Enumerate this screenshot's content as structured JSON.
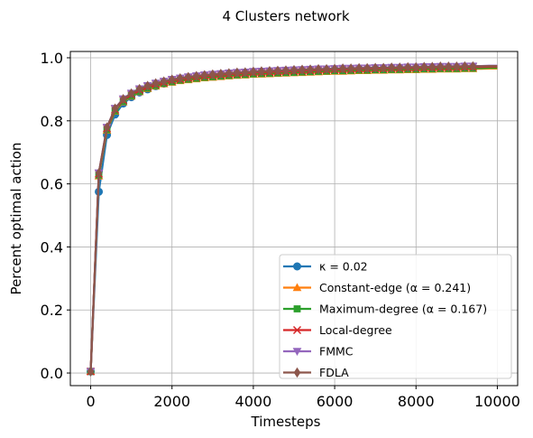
{
  "chart_data": {
    "type": "line",
    "title": "4 Clusters network",
    "xlabel": "Timesteps",
    "ylabel": "Percent optimal action",
    "xlim": [
      -500,
      10500
    ],
    "ylim": [
      -0.04,
      1.02
    ],
    "xticks": [
      0,
      2000,
      4000,
      6000,
      8000,
      10000
    ],
    "yticks": [
      0.0,
      0.2,
      0.4,
      0.6,
      0.8,
      1.0
    ],
    "xtick_labels": [
      "0",
      "2000",
      "4000",
      "6000",
      "8000",
      "10000"
    ],
    "ytick_labels": [
      "0.0",
      "0.2",
      "0.4",
      "0.6",
      "0.8",
      "1.0"
    ],
    "grid": true,
    "legend_position": "lower-right",
    "x": [
      0,
      200,
      400,
      600,
      800,
      1000,
      1200,
      1400,
      1600,
      1800,
      2000,
      2200,
      2400,
      2600,
      2800,
      3000,
      3200,
      3400,
      3600,
      3800,
      4000,
      4200,
      4400,
      4600,
      4800,
      5000,
      5200,
      5400,
      5600,
      5800,
      6000,
      6200,
      6400,
      6600,
      6800,
      7000,
      7200,
      7400,
      7600,
      7800,
      8000,
      8200,
      8400,
      8600,
      8800,
      9000,
      9200,
      9400,
      9600,
      9800,
      10000
    ],
    "series": [
      {
        "name": "κ = 0.02",
        "color": "#1f77b4",
        "marker": "circle",
        "values": [
          0.005,
          0.575,
          0.755,
          0.82,
          0.855,
          0.875,
          0.89,
          0.9,
          0.91,
          0.918,
          0.925,
          0.93,
          0.933,
          0.936,
          0.939,
          0.941,
          0.943,
          0.945,
          0.947,
          0.948,
          0.95,
          0.951,
          0.952,
          0.953,
          0.954,
          0.955,
          0.956,
          0.957,
          0.958,
          0.959,
          0.96,
          0.96,
          0.961,
          0.962,
          0.962,
          0.963,
          0.963,
          0.964,
          0.964,
          0.965,
          0.965,
          0.966,
          0.966,
          0.967,
          0.967,
          0.967,
          0.968,
          0.968,
          0.968,
          0.969,
          0.969
        ]
      },
      {
        "name": "Constant-edge (α = 0.241)",
        "color": "#ff7f0e",
        "marker": "triangle",
        "values": [
          0.005,
          0.625,
          0.77,
          0.83,
          0.86,
          0.878,
          0.892,
          0.902,
          0.91,
          0.917,
          0.922,
          0.927,
          0.93,
          0.933,
          0.936,
          0.938,
          0.94,
          0.942,
          0.944,
          0.945,
          0.947,
          0.948,
          0.949,
          0.95,
          0.951,
          0.952,
          0.953,
          0.954,
          0.955,
          0.956,
          0.957,
          0.957,
          0.958,
          0.959,
          0.959,
          0.96,
          0.96,
          0.961,
          0.961,
          0.962,
          0.962,
          0.963,
          0.963,
          0.964,
          0.964,
          0.964,
          0.965,
          0.965,
          0.965,
          0.966,
          0.966
        ]
      },
      {
        "name": "Maximum-degree (α = 0.167)",
        "color": "#2ca02c",
        "marker": "square",
        "values": [
          0.005,
          0.628,
          0.772,
          0.832,
          0.862,
          0.88,
          0.894,
          0.904,
          0.912,
          0.919,
          0.924,
          0.929,
          0.932,
          0.935,
          0.938,
          0.94,
          0.942,
          0.944,
          0.946,
          0.947,
          0.949,
          0.95,
          0.951,
          0.952,
          0.953,
          0.954,
          0.955,
          0.956,
          0.957,
          0.958,
          0.959,
          0.959,
          0.96,
          0.961,
          0.961,
          0.962,
          0.962,
          0.963,
          0.963,
          0.964,
          0.964,
          0.965,
          0.965,
          0.966,
          0.966,
          0.966,
          0.967,
          0.967,
          0.967,
          0.968,
          0.968
        ]
      },
      {
        "name": "Local-degree",
        "color": "#d62728",
        "marker": "x",
        "values": [
          0.005,
          0.632,
          0.776,
          0.836,
          0.866,
          0.884,
          0.898,
          0.908,
          0.916,
          0.922,
          0.928,
          0.932,
          0.936,
          0.939,
          0.942,
          0.944,
          0.946,
          0.948,
          0.95,
          0.951,
          0.953,
          0.954,
          0.955,
          0.956,
          0.957,
          0.958,
          0.959,
          0.96,
          0.961,
          0.962,
          0.963,
          0.963,
          0.964,
          0.965,
          0.965,
          0.966,
          0.966,
          0.967,
          0.967,
          0.968,
          0.968,
          0.969,
          0.969,
          0.97,
          0.97,
          0.97,
          0.971,
          0.971,
          0.971,
          0.972,
          0.972
        ]
      },
      {
        "name": "FMMC",
        "color": "#9467bd",
        "marker": "triangle-down",
        "values": [
          0.005,
          0.635,
          0.78,
          0.84,
          0.87,
          0.888,
          0.902,
          0.912,
          0.92,
          0.926,
          0.932,
          0.936,
          0.94,
          0.943,
          0.946,
          0.948,
          0.95,
          0.952,
          0.954,
          0.955,
          0.957,
          0.958,
          0.959,
          0.96,
          0.961,
          0.962,
          0.963,
          0.964,
          0.965,
          0.965,
          0.966,
          0.967,
          0.967,
          0.968,
          0.968,
          0.969,
          0.969,
          0.97,
          0.97,
          0.971,
          0.971,
          0.972,
          0.972,
          0.973,
          0.973,
          0.973,
          0.974,
          0.974,
          0.974,
          0.975,
          0.975
        ]
      },
      {
        "name": "FDLA",
        "color": "#8c564b",
        "marker": "diamond",
        "values": [
          0.005,
          0.634,
          0.779,
          0.839,
          0.869,
          0.887,
          0.901,
          0.911,
          0.919,
          0.925,
          0.931,
          0.935,
          0.939,
          0.942,
          0.945,
          0.947,
          0.949,
          0.951,
          0.953,
          0.954,
          0.956,
          0.957,
          0.958,
          0.959,
          0.96,
          0.961,
          0.962,
          0.963,
          0.964,
          0.964,
          0.965,
          0.966,
          0.966,
          0.967,
          0.967,
          0.968,
          0.968,
          0.969,
          0.969,
          0.97,
          0.97,
          0.971,
          0.971,
          0.972,
          0.972,
          0.972,
          0.973,
          0.973,
          0.973,
          0.974,
          0.974
        ]
      }
    ]
  }
}
